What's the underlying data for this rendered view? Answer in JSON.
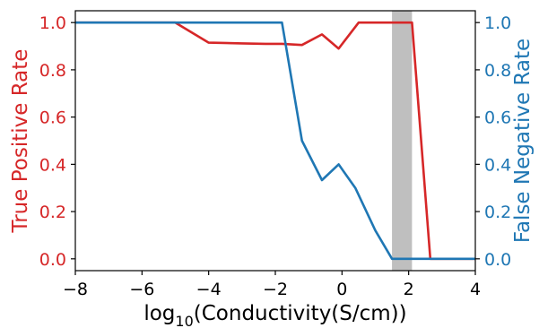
{
  "chart_data": {
    "type": "line",
    "xlabel_main": "log",
    "xlabel_sub": "10",
    "xlabel_rest": "(Conductivity(S/cm))",
    "ylabel_left": "True Positive Rate",
    "ylabel_right": "False Negative Rate",
    "xlim": [
      -8,
      4
    ],
    "ylim": [
      -0.05,
      1.05
    ],
    "x_ticks": [
      -8,
      -6,
      -4,
      -2,
      0,
      2,
      4
    ],
    "x_tick_labels": [
      "−8",
      "−6",
      "−4",
      "−2",
      "0",
      "2",
      "4"
    ],
    "y_ticks": [
      0.0,
      0.2,
      0.4,
      0.6,
      0.8,
      1.0
    ],
    "y_tick_labels": [
      "0.0",
      "0.2",
      "0.4",
      "0.6",
      "0.8",
      "1.0"
    ],
    "shaded_region": [
      1.5,
      2.1
    ],
    "colors": {
      "left": "#d62728",
      "right": "#1f77b4",
      "shade": "#bfbfbf"
    },
    "series": [
      {
        "axis": "left",
        "x": [
          -8,
          -5,
          -4,
          -3,
          -2.3,
          -1.8,
          -1.2,
          -0.6,
          -0.1,
          0.5,
          1,
          1.5,
          2.1,
          2.65,
          4
        ],
        "y": [
          1.0,
          1.0,
          0.915,
          0.912,
          0.91,
          0.91,
          0.905,
          0.95,
          0.89,
          1.0,
          1.0,
          1.0,
          1.0,
          0.0,
          0.0
        ]
      },
      {
        "axis": "right",
        "x": [
          -8,
          -5,
          -4,
          -3,
          -2.3,
          -1.8,
          -1.2,
          -0.6,
          -0.1,
          0.4,
          1.0,
          1.5,
          2.1,
          4
        ],
        "y": [
          1.0,
          1.0,
          1.0,
          1.0,
          1.0,
          1.0,
          0.5,
          0.333,
          0.4,
          0.3,
          0.12,
          0.0,
          0.0,
          0.0
        ]
      }
    ]
  }
}
